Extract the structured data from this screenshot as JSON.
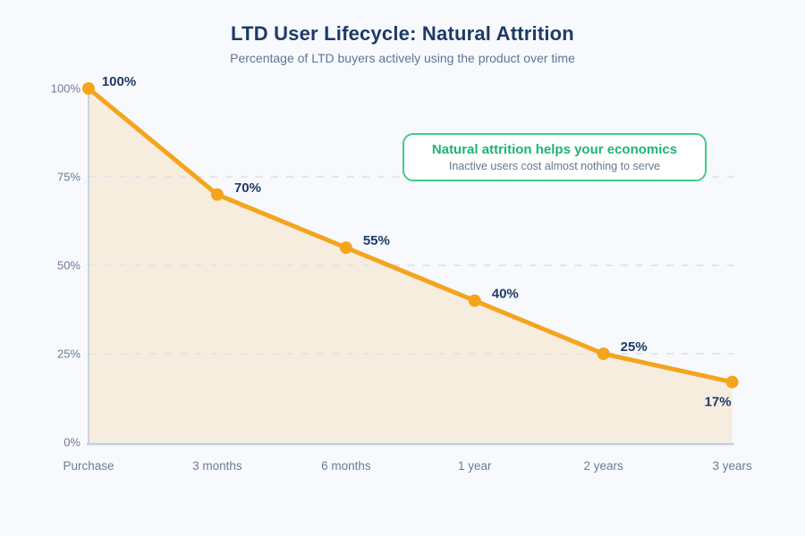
{
  "chart_data": {
    "type": "area",
    "title": "LTD User Lifecycle: Natural Attrition",
    "subtitle": "Percentage of LTD buyers actively using the product over time",
    "categories": [
      "Purchase",
      "3 months",
      "6 months",
      "1 year",
      "2 years",
      "3 years"
    ],
    "values": [
      100,
      70,
      55,
      40,
      25,
      17
    ],
    "data_labels": [
      "100%",
      "70%",
      "55%",
      "40%",
      "25%",
      "17%"
    ],
    "label_positions": [
      "above-right",
      "above-right",
      "above-right",
      "above-right",
      "above-right",
      "below-left"
    ],
    "ylim": [
      0,
      100
    ],
    "y_ticks": [
      {
        "value": 0,
        "label": "0%"
      },
      {
        "value": 25,
        "label": "25%"
      },
      {
        "value": 50,
        "label": "50%"
      },
      {
        "value": 75,
        "label": "75%"
      },
      {
        "value": 100,
        "label": "100%"
      }
    ],
    "gridlines": {
      "style": "dashed",
      "orientation": "horizontal",
      "at": [
        25,
        50,
        75
      ]
    },
    "legend": "none",
    "annotation": {
      "title": "Natural attrition helps your economics",
      "subtitle": "Inactive users cost almost nothing to serve"
    }
  },
  "colors": {
    "line": "#F5A41D",
    "marker": "#F5A41D",
    "area_fill": "#F5A41D",
    "area_opacity": "0.13",
    "title_text": "#1E3A68",
    "subtitle_text": "#5E7699",
    "data_label_text": "#1E3A68",
    "tick_text": "#6C7C98",
    "grid": "#E2E6EC",
    "axis_y": "#CBD4DE",
    "axis_x": "#C6D0DA",
    "annotation_border": "#41CB8E",
    "annotation_title": "#1CB573",
    "annotation_text": "#66788C",
    "background": "#F7F9FC"
  }
}
